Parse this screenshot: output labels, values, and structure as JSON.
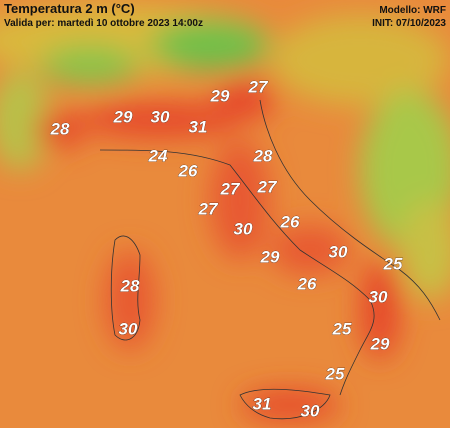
{
  "header": {
    "title": "Temperatura 2 m (°C)",
    "subtitle": "Valida per: martedì 10 ottobre 2023 14:00z",
    "model": "Modello: WRF",
    "init": "INIT: 07/10/2023"
  },
  "labels": [
    "29",
    "27",
    "28",
    "29",
    "30",
    "31",
    "24",
    "28",
    "26",
    "27",
    "27",
    "27",
    "26",
    "30",
    "29",
    "30",
    "25",
    "26",
    "28",
    "30",
    "30",
    "25",
    "29",
    "25",
    "31",
    "30"
  ]
}
